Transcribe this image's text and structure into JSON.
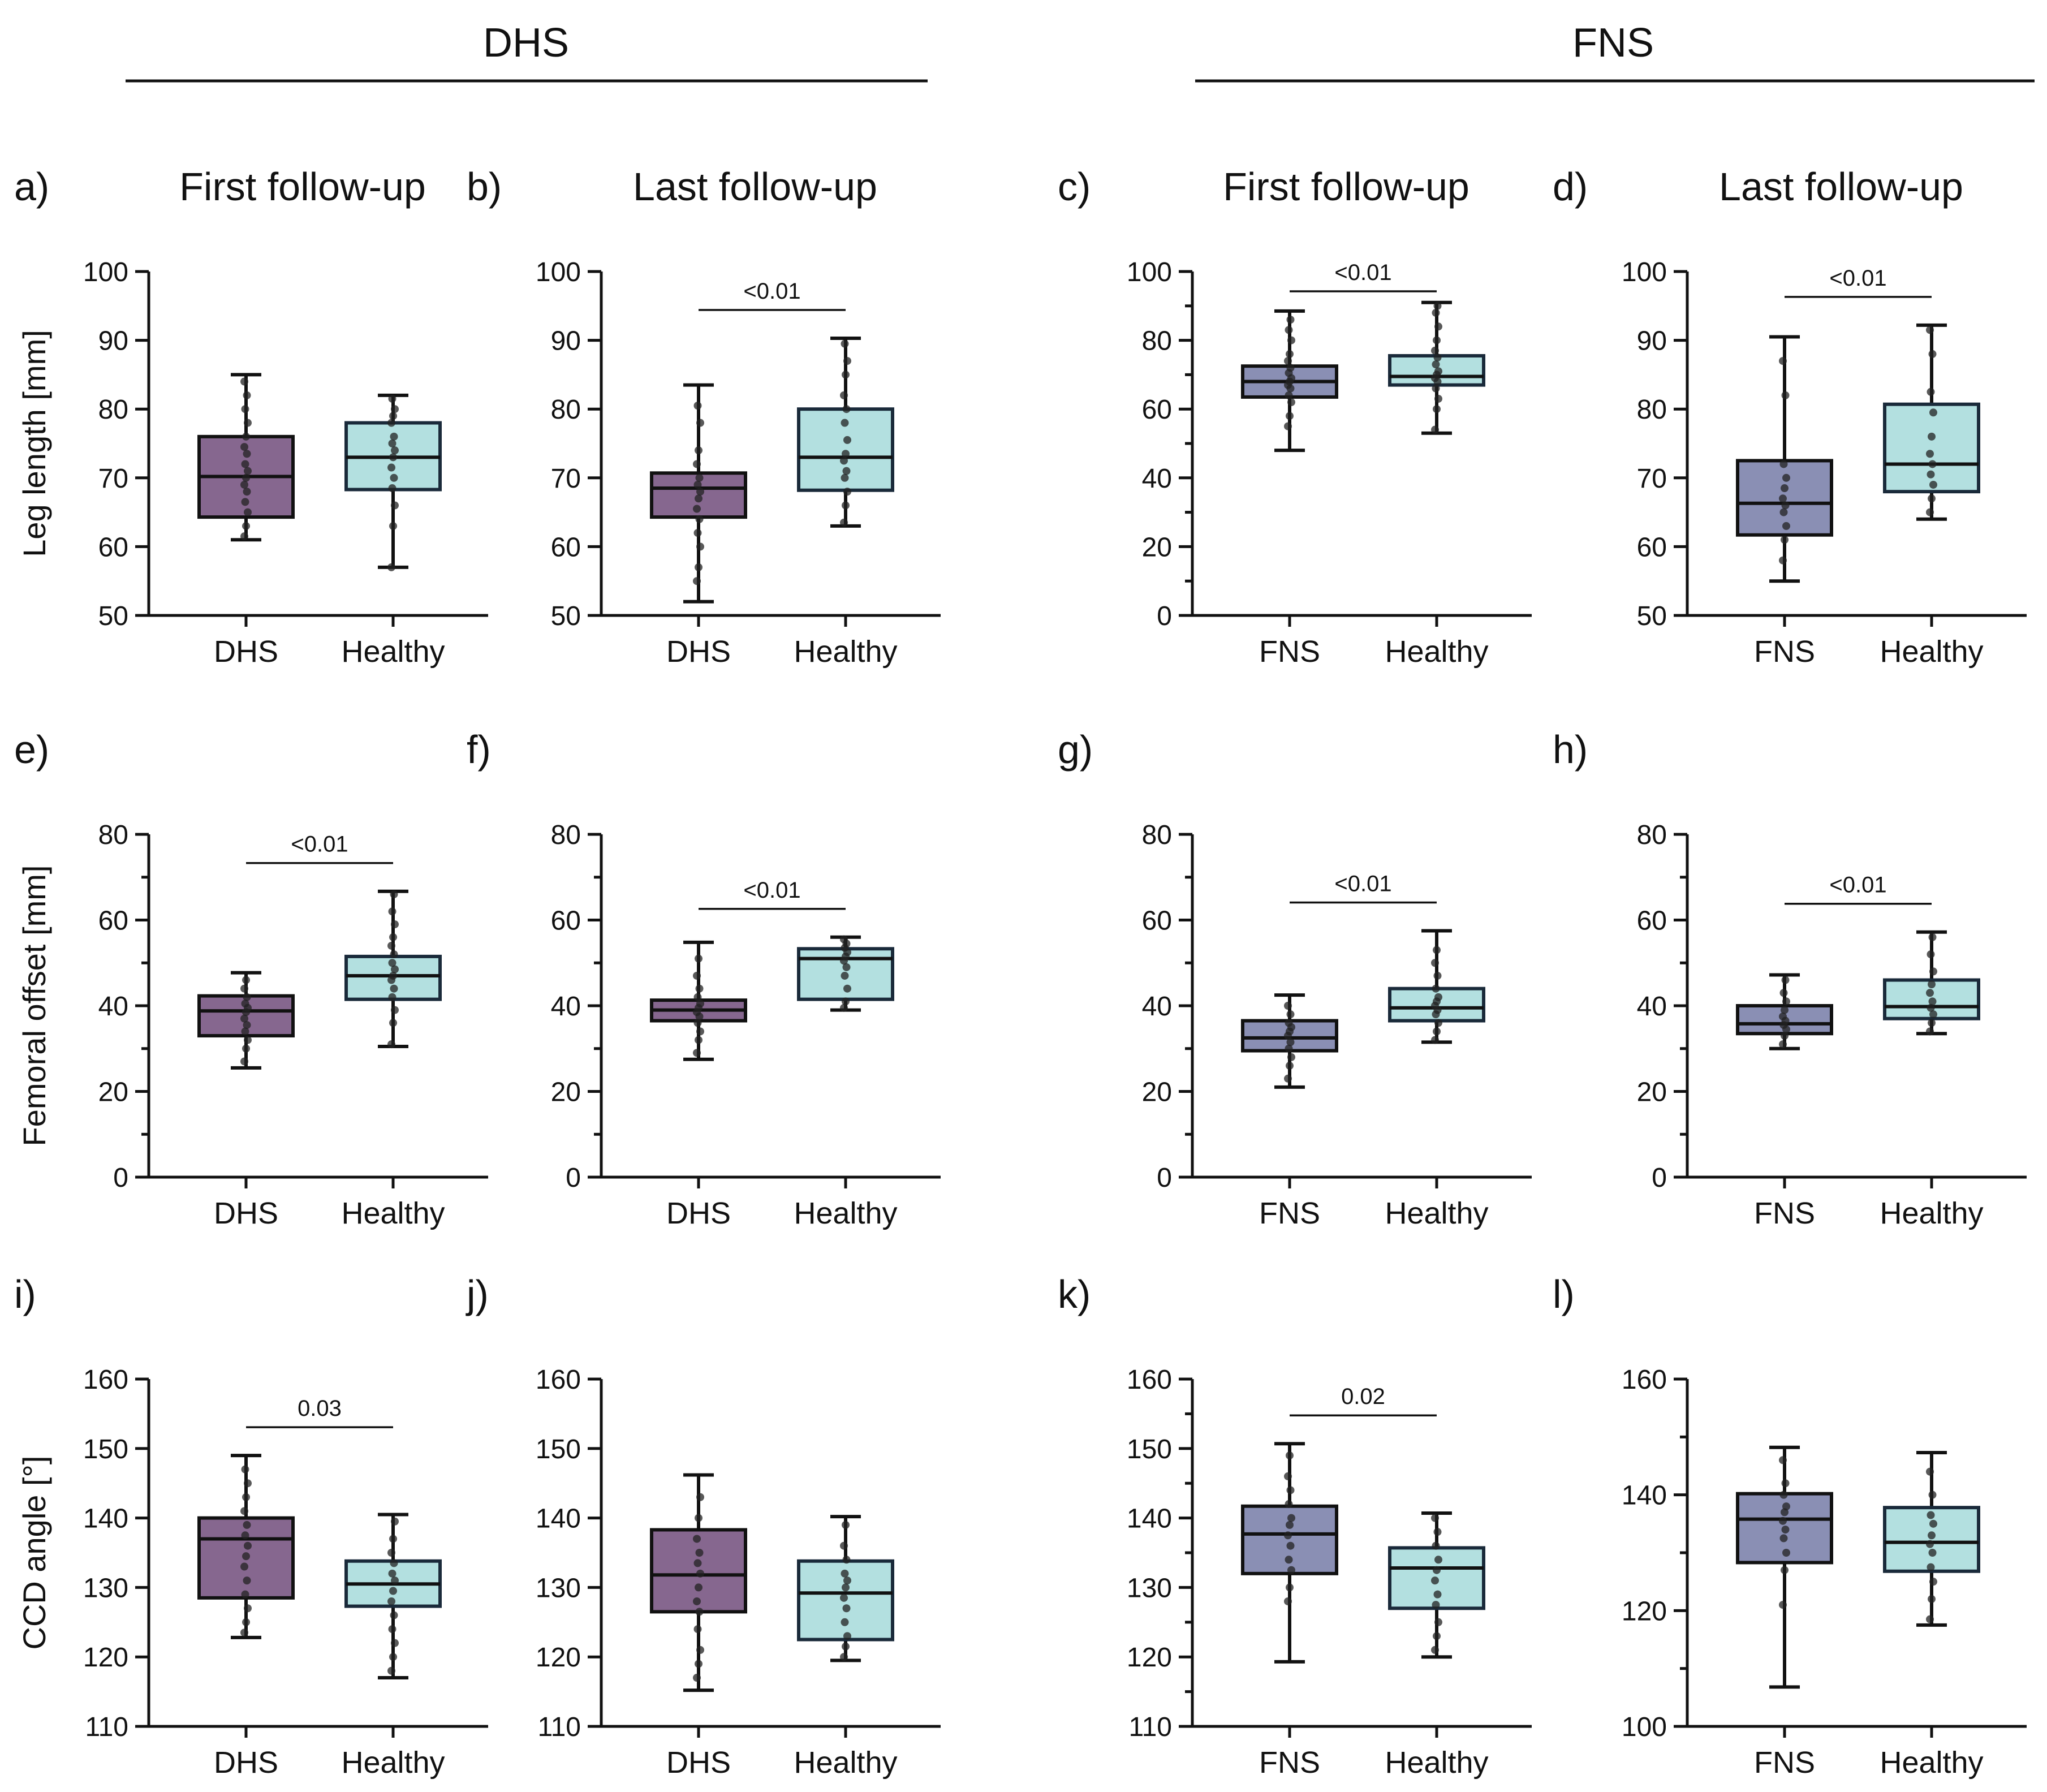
{
  "figure": {
    "groups": [
      {
        "title": "DHS"
      },
      {
        "title": "FNS"
      }
    ],
    "colors": {
      "DHS": "#86678f",
      "FNS": "#8a8fb4",
      "Healthy": "#b3e0e0",
      "box_stroke": "#1a2a3a"
    },
    "row_ylabels": [
      "Leg length [mm]",
      "Femoral offset [mm]",
      "CCD angle [°]"
    ]
  },
  "chart_data": [
    {
      "label": "a)",
      "title": "First follow-up",
      "type": "box",
      "ylabel": "Leg length [mm]",
      "categories": [
        "DHS",
        "Healthy"
      ],
      "ylim": [
        50,
        100
      ],
      "ticks": [
        50,
        60,
        70,
        80,
        90,
        100
      ],
      "minor": false,
      "sig": null,
      "boxes": [
        {
          "min": 61,
          "q1": 64.3,
          "median": 70.2,
          "q3": 76,
          "max": 85,
          "points": [
            61.5,
            63,
            65,
            66.5,
            68,
            69,
            70,
            71,
            72,
            73.5,
            74.5,
            76,
            78,
            80,
            82,
            84
          ]
        },
        {
          "min": 57,
          "q1": 68.3,
          "median": 73,
          "q3": 78,
          "max": 82,
          "points": [
            57,
            63,
            66,
            68.5,
            70,
            71.5,
            73,
            74,
            75,
            76,
            78,
            79,
            80,
            81.5
          ]
        }
      ]
    },
    {
      "label": "b)",
      "title": "Last follow-up",
      "type": "box",
      "ylabel": "",
      "categories": [
        "DHS",
        "Healthy"
      ],
      "ylim": [
        50,
        100
      ],
      "ticks": [
        50,
        60,
        70,
        80,
        90,
        100
      ],
      "minor": false,
      "sig": "<0.01",
      "boxes": [
        {
          "min": 52,
          "q1": 64.3,
          "median": 68.5,
          "q3": 70.7,
          "max": 83.5,
          "points": [
            55,
            57,
            60,
            62,
            64,
            65.5,
            67,
            68,
            69,
            70,
            72,
            74,
            78,
            80.5
          ]
        },
        {
          "min": 63,
          "q1": 68.2,
          "median": 73,
          "q3": 80,
          "max": 90.3,
          "points": [
            63.5,
            66,
            68,
            70,
            71,
            72.5,
            73.5,
            75.5,
            78,
            80,
            82,
            85,
            87,
            89.5
          ]
        }
      ]
    },
    {
      "label": "c)",
      "title": "First follow-up",
      "type": "box",
      "ylabel": "",
      "categories": [
        "FNS",
        "Healthy"
      ],
      "ylim": [
        0,
        100
      ],
      "ticks": [
        0,
        20,
        40,
        60,
        80,
        100
      ],
      "minor": true,
      "sig": "<0.01",
      "boxes": [
        {
          "min": 48,
          "q1": 63.5,
          "median": 68,
          "q3": 72.5,
          "max": 88.5,
          "points": [
            55,
            58,
            62,
            64,
            66,
            67,
            68,
            69,
            70.5,
            72,
            74,
            76,
            80,
            83,
            86
          ]
        },
        {
          "min": 53,
          "q1": 67,
          "median": 69.5,
          "q3": 75.5,
          "max": 91,
          "points": [
            54,
            60,
            63,
            66,
            68,
            69,
            70,
            71,
            73,
            75,
            77,
            80,
            84,
            88,
            90
          ]
        }
      ]
    },
    {
      "label": "d)",
      "title": "Last follow-up",
      "type": "box",
      "ylabel": "",
      "categories": [
        "FNS",
        "Healthy"
      ],
      "ylim": [
        50,
        100
      ],
      "ticks": [
        50,
        60,
        70,
        80,
        90,
        100
      ],
      "minor": false,
      "sig": "<0.01",
      "boxes": [
        {
          "min": 55,
          "q1": 61.7,
          "median": 66.3,
          "q3": 72.5,
          "max": 90.5,
          "points": [
            58,
            61,
            63,
            65,
            66,
            67,
            68.5,
            70,
            72,
            82,
            87
          ]
        },
        {
          "min": 64,
          "q1": 68,
          "median": 72,
          "q3": 80.7,
          "max": 92.2,
          "points": [
            65,
            67,
            69,
            70.5,
            72,
            73.5,
            76,
            79.5,
            82.5,
            88,
            91.5
          ]
        }
      ]
    },
    {
      "label": "e)",
      "title": "",
      "type": "box",
      "ylabel": "Femoral offset [mm]",
      "categories": [
        "DHS",
        "Healthy"
      ],
      "ylim": [
        0,
        80
      ],
      "ticks": [
        0,
        20,
        40,
        60,
        80
      ],
      "minor": true,
      "sig": "<0.01",
      "boxes": [
        {
          "min": 25.5,
          "q1": 33,
          "median": 38.8,
          "q3": 42.3,
          "max": 47.7,
          "points": [
            27,
            30,
            32,
            34,
            35.5,
            37,
            38.5,
            39.5,
            40.5,
            42,
            44,
            46
          ]
        },
        {
          "min": 30.5,
          "q1": 41.5,
          "median": 47,
          "q3": 51.5,
          "max": 66.7,
          "points": [
            31,
            36,
            39,
            42,
            44,
            46,
            47,
            48.5,
            50,
            52,
            54,
            56,
            59,
            62,
            66
          ]
        }
      ]
    },
    {
      "label": "f)",
      "title": "",
      "type": "box",
      "ylabel": "",
      "categories": [
        "DHS",
        "Healthy"
      ],
      "ylim": [
        0,
        80
      ],
      "ticks": [
        0,
        20,
        40,
        60,
        80
      ],
      "minor": true,
      "sig": "<0.01",
      "boxes": [
        {
          "min": 27.5,
          "q1": 36.5,
          "median": 39,
          "q3": 41.3,
          "max": 54.8,
          "points": [
            29,
            32,
            34,
            36,
            37.5,
            38.5,
            39.5,
            40.5,
            42,
            44,
            47,
            51
          ]
        },
        {
          "min": 39,
          "q1": 41.5,
          "median": 51,
          "q3": 53.3,
          "max": 56,
          "points": [
            39.5,
            41,
            44,
            47,
            49,
            50.5,
            51.5,
            52.5,
            53.5,
            54.5,
            55.5
          ]
        }
      ]
    },
    {
      "label": "g)",
      "title": "",
      "type": "box",
      "ylabel": "",
      "categories": [
        "FNS",
        "Healthy"
      ],
      "ylim": [
        0,
        80
      ],
      "ticks": [
        0,
        20,
        40,
        60,
        80
      ],
      "minor": true,
      "sig": "<0.01",
      "boxes": [
        {
          "min": 21,
          "q1": 29.5,
          "median": 32.5,
          "q3": 36.5,
          "max": 42.5,
          "points": [
            23,
            26,
            28,
            30,
            31.5,
            33,
            34,
            35,
            36,
            38,
            40
          ]
        },
        {
          "min": 31.5,
          "q1": 36.5,
          "median": 39.5,
          "q3": 44,
          "max": 57.5,
          "points": [
            32,
            34,
            36,
            38,
            39,
            40,
            41,
            42,
            44,
            47,
            50,
            53
          ]
        }
      ]
    },
    {
      "label": "h)",
      "title": "",
      "type": "box",
      "ylabel": "",
      "categories": [
        "FNS",
        "Healthy"
      ],
      "ylim": [
        0,
        80
      ],
      "ticks": [
        0,
        20,
        40,
        60,
        80
      ],
      "minor": true,
      "sig": "<0.01",
      "boxes": [
        {
          "min": 30,
          "q1": 33.5,
          "median": 35.8,
          "q3": 40,
          "max": 47.2,
          "points": [
            31,
            33,
            34.5,
            35.5,
            36.5,
            37.5,
            39,
            41,
            43,
            46
          ]
        },
        {
          "min": 33.5,
          "q1": 37,
          "median": 39.8,
          "q3": 46,
          "max": 57.2,
          "points": [
            34,
            36,
            38,
            39.5,
            41,
            43,
            45,
            48,
            52,
            56
          ]
        }
      ]
    },
    {
      "label": "i)",
      "title": "",
      "type": "box",
      "ylabel": "CCD angle [°]",
      "categories": [
        "DHS",
        "Healthy"
      ],
      "ylim": [
        110,
        160
      ],
      "ticks": [
        110,
        120,
        130,
        140,
        150,
        160
      ],
      "minor": false,
      "sig": "0.03",
      "boxes": [
        {
          "min": 122.8,
          "q1": 128.5,
          "median": 137,
          "q3": 140,
          "max": 149,
          "points": [
            123.5,
            125,
            127,
            129,
            131,
            133,
            134.5,
            136,
            137.5,
            139,
            141,
            143,
            145,
            147
          ]
        },
        {
          "min": 117,
          "q1": 127.3,
          "median": 130.5,
          "q3": 133.8,
          "max": 140.5,
          "points": [
            118,
            120,
            122,
            124,
            126,
            128,
            129.5,
            131,
            132,
            133.5,
            135,
            137,
            139.5
          ]
        }
      ]
    },
    {
      "label": "j)",
      "title": "",
      "type": "box",
      "ylabel": "",
      "categories": [
        "DHS",
        "Healthy"
      ],
      "ylim": [
        110,
        160
      ],
      "ticks": [
        110,
        120,
        130,
        140,
        150,
        160
      ],
      "minor": false,
      "sig": null,
      "boxes": [
        {
          "min": 115.2,
          "q1": 126.5,
          "median": 131.8,
          "q3": 138.3,
          "max": 146.2,
          "points": [
            117,
            119,
            121,
            124,
            126.5,
            128,
            130,
            132,
            133.5,
            135,
            137,
            140,
            143
          ]
        },
        {
          "min": 119.5,
          "q1": 122.5,
          "median": 129.2,
          "q3": 133.8,
          "max": 140.2,
          "points": [
            120,
            121.5,
            123,
            125,
            127,
            128.5,
            130,
            131,
            132,
            134,
            136,
            139
          ]
        }
      ]
    },
    {
      "label": "k)",
      "title": "",
      "type": "box",
      "ylabel": "",
      "categories": [
        "FNS",
        "Healthy"
      ],
      "ylim": [
        110,
        160
      ],
      "ticks": [
        110,
        120,
        130,
        140,
        150,
        160
      ],
      "minor": true,
      "sig": "0.02",
      "boxes": [
        {
          "min": 119.3,
          "q1": 132,
          "median": 137.7,
          "q3": 141.7,
          "max": 150.7,
          "points": [
            128,
            130,
            132.5,
            134,
            136,
            137.5,
            139,
            140,
            142,
            144,
            146,
            149
          ]
        },
        {
          "min": 120,
          "q1": 127,
          "median": 132.8,
          "q3": 135.7,
          "max": 140.7,
          "points": [
            121,
            123,
            125,
            127.5,
            129,
            131,
            132.5,
            134,
            136,
            138,
            140
          ]
        }
      ]
    },
    {
      "label": "l)",
      "title": "",
      "type": "box",
      "ylabel": "",
      "categories": [
        "FNS",
        "Healthy"
      ],
      "ylim": [
        100,
        160
      ],
      "ticks": [
        100,
        120,
        140,
        160
      ],
      "minor": true,
      "sig": null,
      "boxes": [
        {
          "min": 106.8,
          "q1": 128.3,
          "median": 135.8,
          "q3": 140.2,
          "max": 148.2,
          "points": [
            121,
            127,
            130,
            132.5,
            134,
            135.5,
            137,
            138,
            140,
            142,
            146
          ]
        },
        {
          "min": 117.5,
          "q1": 126.8,
          "median": 131.8,
          "q3": 137.8,
          "max": 147.3,
          "points": [
            118.5,
            122,
            125,
            127.5,
            130,
            131.5,
            133,
            135,
            136.5,
            140,
            144
          ]
        }
      ]
    }
  ]
}
